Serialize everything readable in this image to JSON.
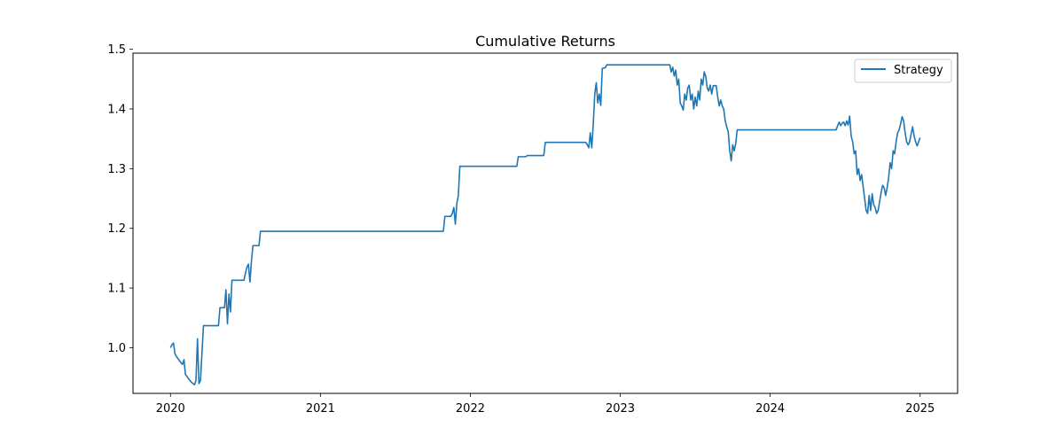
{
  "chart_data": {
    "type": "line",
    "title": "Cumulative Returns",
    "xlabel": "",
    "ylabel": "",
    "xlim": [
      2019.75,
      2025.25
    ],
    "ylim": [
      0.9235,
      1.4935
    ],
    "x_ticks": [
      {
        "value": 2020,
        "label": "2020"
      },
      {
        "value": 2021,
        "label": "2021"
      },
      {
        "value": 2022,
        "label": "2022"
      },
      {
        "value": 2023,
        "label": "2023"
      },
      {
        "value": 2024,
        "label": "2024"
      },
      {
        "value": 2025,
        "label": "2025"
      }
    ],
    "y_ticks": [
      {
        "value": 1.0,
        "label": "1.0"
      },
      {
        "value": 1.1,
        "label": "1.1"
      },
      {
        "value": 1.2,
        "label": "1.2"
      },
      {
        "value": 1.3,
        "label": "1.3"
      },
      {
        "value": 1.4,
        "label": "1.4"
      },
      {
        "value": 1.5,
        "label": "1.5"
      }
    ],
    "grid": false,
    "legend_position": "top-right",
    "series": [
      {
        "name": "Strategy",
        "color": "#1f77b4",
        "points": [
          [
            2020.0,
            1.0
          ],
          [
            2020.01,
            1.005
          ],
          [
            2020.02,
            1.008
          ],
          [
            2020.03,
            0.99
          ],
          [
            2020.04,
            0.985
          ],
          [
            2020.05,
            0.982
          ],
          [
            2020.06,
            0.978
          ],
          [
            2020.07,
            0.975
          ],
          [
            2020.08,
            0.972
          ],
          [
            2020.09,
            0.98
          ],
          [
            2020.1,
            0.955
          ],
          [
            2020.11,
            0.952
          ],
          [
            2020.12,
            0.948
          ],
          [
            2020.13,
            0.945
          ],
          [
            2020.14,
            0.942
          ],
          [
            2020.15,
            0.94
          ],
          [
            2020.16,
            0.938
          ],
          [
            2020.17,
            0.945
          ],
          [
            2020.18,
            1.015
          ],
          [
            2020.19,
            0.94
          ],
          [
            2020.2,
            0.945
          ],
          [
            2020.22,
            1.037
          ],
          [
            2020.3,
            1.037
          ],
          [
            2020.32,
            1.037
          ],
          [
            2020.33,
            1.067
          ],
          [
            2020.36,
            1.067
          ],
          [
            2020.37,
            1.097
          ],
          [
            2020.38,
            1.04
          ],
          [
            2020.39,
            1.09
          ],
          [
            2020.4,
            1.06
          ],
          [
            2020.41,
            1.113
          ],
          [
            2020.49,
            1.113
          ],
          [
            2020.5,
            1.125
          ],
          [
            2020.51,
            1.135
          ],
          [
            2020.52,
            1.14
          ],
          [
            2020.53,
            1.11
          ],
          [
            2020.54,
            1.145
          ],
          [
            2020.55,
            1.171
          ],
          [
            2020.59,
            1.171
          ],
          [
            2020.6,
            1.195
          ],
          [
            2021.82,
            1.195
          ],
          [
            2021.83,
            1.22
          ],
          [
            2021.87,
            1.22
          ],
          [
            2021.88,
            1.225
          ],
          [
            2021.89,
            1.235
          ],
          [
            2021.9,
            1.207
          ],
          [
            2021.91,
            1.242
          ],
          [
            2021.92,
            1.255
          ],
          [
            2021.93,
            1.304
          ],
          [
            2022.31,
            1.304
          ],
          [
            2022.32,
            1.32
          ],
          [
            2022.37,
            1.32
          ],
          [
            2022.38,
            1.322
          ],
          [
            2022.49,
            1.322
          ],
          [
            2022.5,
            1.344
          ],
          [
            2022.77,
            1.344
          ],
          [
            2022.78,
            1.34
          ],
          [
            2022.79,
            1.335
          ],
          [
            2022.8,
            1.36
          ],
          [
            2022.81,
            1.335
          ],
          [
            2022.82,
            1.375
          ],
          [
            2022.83,
            1.425
          ],
          [
            2022.84,
            1.444
          ],
          [
            2022.85,
            1.41
          ],
          [
            2022.86,
            1.425
          ],
          [
            2022.87,
            1.406
          ],
          [
            2022.88,
            1.468
          ],
          [
            2022.9,
            1.469
          ],
          [
            2022.91,
            1.474
          ],
          [
            2023.33,
            1.474
          ],
          [
            2023.34,
            1.462
          ],
          [
            2023.35,
            1.47
          ],
          [
            2023.36,
            1.455
          ],
          [
            2023.37,
            1.465
          ],
          [
            2023.38,
            1.44
          ],
          [
            2023.39,
            1.45
          ],
          [
            2023.4,
            1.41
          ],
          [
            2023.41,
            1.405
          ],
          [
            2023.42,
            1.398
          ],
          [
            2023.43,
            1.425
          ],
          [
            2023.44,
            1.415
          ],
          [
            2023.45,
            1.435
          ],
          [
            2023.46,
            1.44
          ],
          [
            2023.47,
            1.415
          ],
          [
            2023.48,
            1.425
          ],
          [
            2023.49,
            1.4
          ],
          [
            2023.5,
            1.42
          ],
          [
            2023.51,
            1.405
          ],
          [
            2023.52,
            1.43
          ],
          [
            2023.53,
            1.415
          ],
          [
            2023.54,
            1.45
          ],
          [
            2023.55,
            1.44
          ],
          [
            2023.56,
            1.462
          ],
          [
            2023.57,
            1.455
          ],
          [
            2023.58,
            1.435
          ],
          [
            2023.59,
            1.43
          ],
          [
            2023.6,
            1.44
          ],
          [
            2023.61,
            1.425
          ],
          [
            2023.62,
            1.439
          ],
          [
            2023.64,
            1.439
          ],
          [
            2023.65,
            1.42
          ],
          [
            2023.66,
            1.405
          ],
          [
            2023.67,
            1.415
          ],
          [
            2023.68,
            1.405
          ],
          [
            2023.69,
            1.4
          ],
          [
            2023.7,
            1.38
          ],
          [
            2023.71,
            1.37
          ],
          [
            2023.72,
            1.362
          ],
          [
            2023.73,
            1.33
          ],
          [
            2023.74,
            1.313
          ],
          [
            2023.75,
            1.34
          ],
          [
            2023.76,
            1.33
          ],
          [
            2023.77,
            1.342
          ],
          [
            2023.78,
            1.365
          ],
          [
            2024.44,
            1.365
          ],
          [
            2024.45,
            1.372
          ],
          [
            2024.46,
            1.378
          ],
          [
            2024.47,
            1.372
          ],
          [
            2024.48,
            1.376
          ],
          [
            2024.49,
            1.378
          ],
          [
            2024.5,
            1.372
          ],
          [
            2024.51,
            1.38
          ],
          [
            2024.52,
            1.373
          ],
          [
            2024.53,
            1.388
          ],
          [
            2024.54,
            1.355
          ],
          [
            2024.55,
            1.345
          ],
          [
            2024.56,
            1.325
          ],
          [
            2024.57,
            1.33
          ],
          [
            2024.58,
            1.29
          ],
          [
            2024.59,
            1.3
          ],
          [
            2024.6,
            1.28
          ],
          [
            2024.61,
            1.29
          ],
          [
            2024.62,
            1.27
          ],
          [
            2024.63,
            1.25
          ],
          [
            2024.64,
            1.23
          ],
          [
            2024.65,
            1.225
          ],
          [
            2024.66,
            1.255
          ],
          [
            2024.67,
            1.23
          ],
          [
            2024.68,
            1.258
          ],
          [
            2024.69,
            1.24
          ],
          [
            2024.7,
            1.235
          ],
          [
            2024.71,
            1.225
          ],
          [
            2024.72,
            1.23
          ],
          [
            2024.73,
            1.245
          ],
          [
            2024.74,
            1.26
          ],
          [
            2024.75,
            1.272
          ],
          [
            2024.76,
            1.268
          ],
          [
            2024.77,
            1.255
          ],
          [
            2024.78,
            1.268
          ],
          [
            2024.79,
            1.285
          ],
          [
            2024.8,
            1.31
          ],
          [
            2024.81,
            1.3
          ],
          [
            2024.82,
            1.33
          ],
          [
            2024.83,
            1.325
          ],
          [
            2024.84,
            1.345
          ],
          [
            2024.85,
            1.36
          ],
          [
            2024.86,
            1.365
          ],
          [
            2024.87,
            1.375
          ],
          [
            2024.88,
            1.387
          ],
          [
            2024.89,
            1.38
          ],
          [
            2024.9,
            1.36
          ],
          [
            2024.91,
            1.345
          ],
          [
            2024.92,
            1.34
          ],
          [
            2024.93,
            1.345
          ],
          [
            2024.94,
            1.358
          ],
          [
            2024.95,
            1.37
          ],
          [
            2024.96,
            1.355
          ],
          [
            2024.97,
            1.345
          ],
          [
            2024.98,
            1.338
          ],
          [
            2024.99,
            1.345
          ],
          [
            2025.0,
            1.352
          ]
        ]
      }
    ]
  }
}
